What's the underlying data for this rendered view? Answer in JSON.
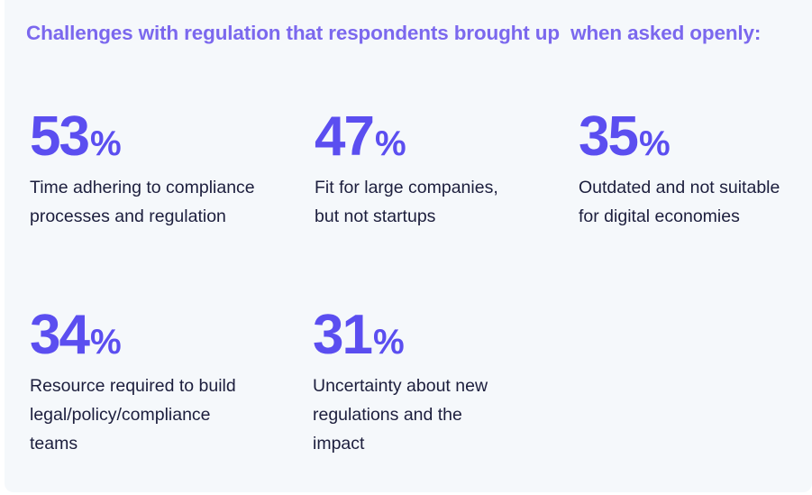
{
  "title": "Challenges with regulation that respondents brought up  when asked openly:",
  "stats": [
    {
      "value": "53",
      "unit": "%",
      "line1": "Time adhering to compliance",
      "line2": "processes and regulation",
      "line3": ""
    },
    {
      "value": "47",
      "unit": "%",
      "line1": "Fit for large companies,",
      "line2": "but not startups",
      "line3": ""
    },
    {
      "value": "35",
      "unit": "%",
      "line1": "Outdated and not suitable",
      "line2": "for digital economies",
      "line3": ""
    },
    {
      "value": "34",
      "unit": "%",
      "line1": "Resource required to build",
      "line2": "legal/policy/compliance",
      "line3": "teams"
    },
    {
      "value": "31",
      "unit": "%",
      "line1": "Uncertainty about new",
      "line2": "regulations and the",
      "line3": "impact"
    }
  ]
}
